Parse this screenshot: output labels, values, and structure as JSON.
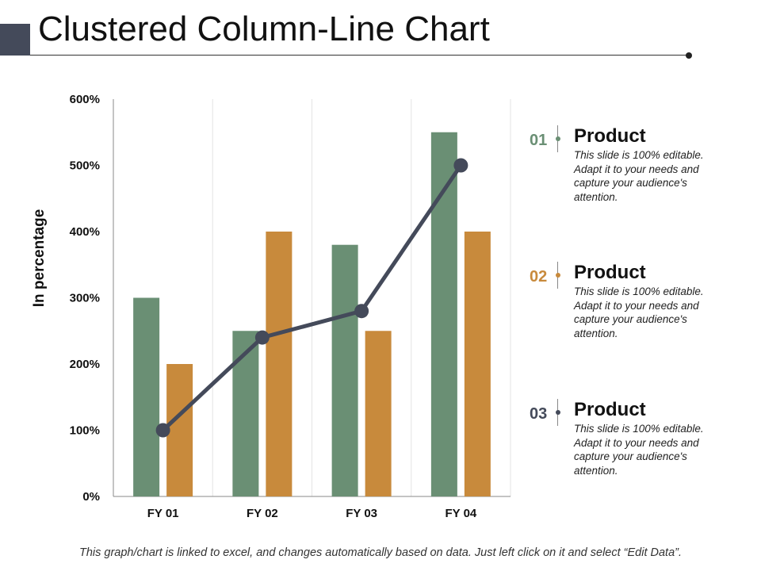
{
  "slide": {
    "title": "Clustered Column-Line Chart",
    "footer": "This graph/chart is linked to excel, and changes automatically based on data. Just left click on it and select “Edit Data”."
  },
  "colors": {
    "series1": "#6a8f74",
    "series2": "#c88a3c",
    "line": "#444a5a",
    "accent_block": "#444a5a"
  },
  "chart_data": {
    "type": "bar",
    "categories": [
      "FY 01",
      "FY 02",
      "FY 03",
      "FY 04"
    ],
    "series": [
      {
        "type": "bar",
        "values": [
          300,
          250,
          380,
          550
        ]
      },
      {
        "type": "bar",
        "values": [
          200,
          400,
          250,
          400
        ]
      },
      {
        "type": "line",
        "values": [
          100,
          240,
          280,
          500
        ]
      }
    ],
    "ylabel": "In percentage",
    "ylim": [
      0,
      600
    ],
    "yticks": [
      0,
      100,
      200,
      300,
      400,
      500,
      600
    ],
    "ytick_labels": [
      "0%",
      "100%",
      "200%",
      "300%",
      "400%",
      "500%",
      "600%"
    ],
    "grid": "vertical"
  },
  "legend": [
    {
      "num": "01",
      "heading": "Product",
      "text": "This slide is 100% editable. Adapt it to your needs and capture your audience's attention.",
      "color": "#6a8f74"
    },
    {
      "num": "02",
      "heading": "Product",
      "text": "This slide is 100% editable. Adapt it to your needs and capture your audience's attention.",
      "color": "#c88a3c"
    },
    {
      "num": "03",
      "heading": "Product",
      "text": "This slide is 100% editable. Adapt it to your needs and capture your audience's attention.",
      "color": "#444a5a"
    }
  ]
}
